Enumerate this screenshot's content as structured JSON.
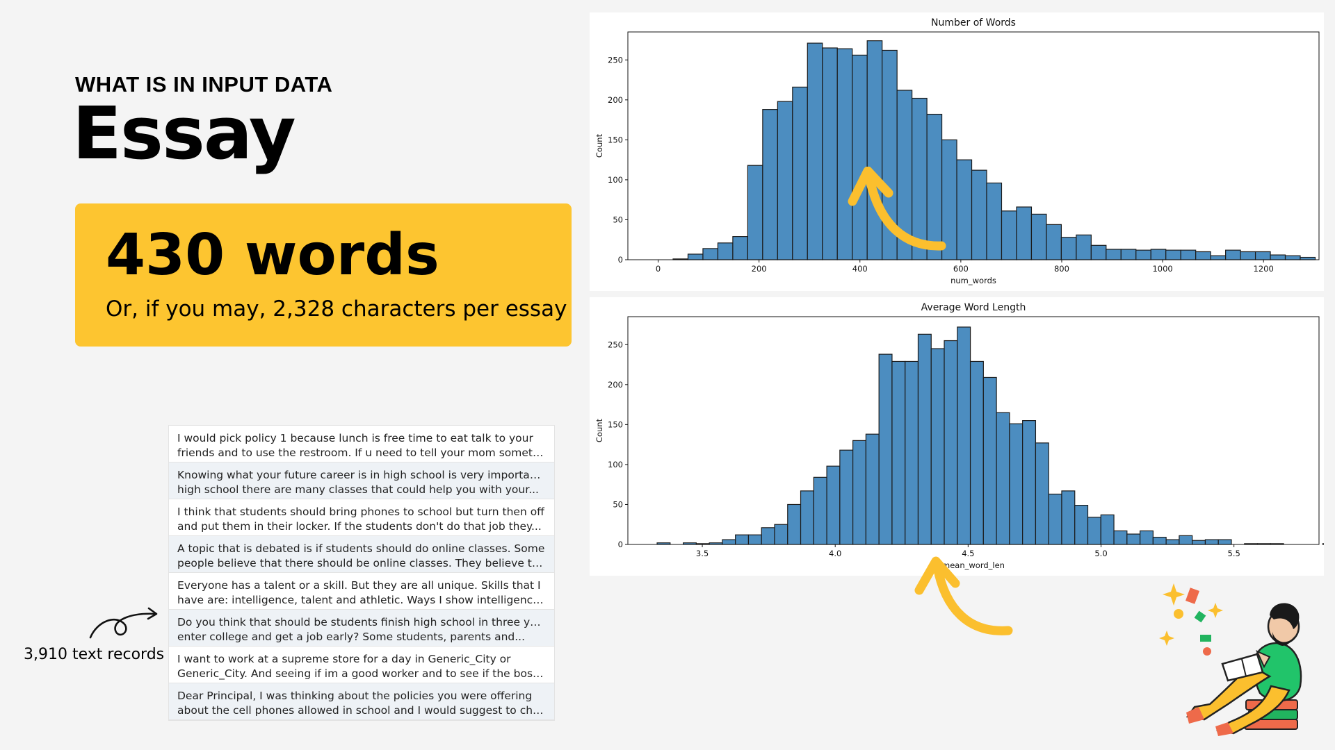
{
  "header": {
    "eyebrow": "WHAT IS IN INPUT DATA",
    "title": "Essay"
  },
  "stat": {
    "value": "430 words",
    "sub": "Or, if you may, 2,328 characters per essay"
  },
  "records": {
    "caption": "3,910 text records",
    "items": [
      {
        "line1": "I would pick policy 1 because lunch is free time to eat talk to your",
        "line2": "friends and to use the restroom. If u need to tell your mom somethin..."
      },
      {
        "line1": "Knowing what your future career is in high school is very important. In",
        "line2": "high school there are many classes that could help you with your..."
      },
      {
        "line1": "I think that students should bring phones to school but turn then off",
        "line2": "and put them in their locker. If the students don't do that job they..."
      },
      {
        "line1": "A topic that is debated is if students should do online classes. Some",
        "line2": "people believe that there should be online classes. They believe that..."
      },
      {
        "line1": "Everyone has a talent or a skill. But they are all unique. Skills that I",
        "line2": "have are: intelligence, talent and athletic. Ways I show intelligence ar..."
      },
      {
        "line1": "Do you think that should be students finish high school in three years,",
        "line2": "enter college and get a job early? Some students, parents and..."
      },
      {
        "line1": "I want to work at a supreme store for a day in Generic_City or",
        "line2": "Generic_City. And seeing if im a good worker and to see if the boss ..."
      },
      {
        "line1": "Dear Principal, I was thinking about the policies you were offering",
        "line2": "about the cell phones allowed in school and I would suggest to choo..."
      }
    ]
  },
  "colors": {
    "bar_fill": "#4c8dc0",
    "bar_edge": "#1b1b1b",
    "accent_yellow": "#fdc530",
    "arrow_yellow": "#fbbf2e"
  },
  "chart_data": [
    {
      "type": "bar",
      "title": "Number of Words",
      "xlabel": "num_words",
      "ylabel": "Count",
      "xlim": [
        -60,
        1310
      ],
      "ylim": [
        0,
        285
      ],
      "xticks": [
        0,
        200,
        400,
        600,
        800,
        1000,
        1200
      ],
      "yticks": [
        0,
        50,
        100,
        150,
        200,
        250
      ],
      "bin_start": 0,
      "bin_width": 29.6,
      "values": [
        0,
        1,
        7,
        14,
        21,
        29,
        118,
        188,
        198,
        216,
        271,
        265,
        264,
        256,
        274,
        262,
        212,
        202,
        182,
        150,
        125,
        112,
        96,
        61,
        66,
        57,
        44,
        28,
        31,
        18,
        13,
        13,
        12,
        13,
        12,
        12,
        10,
        5,
        12,
        10,
        10,
        6,
        5,
        3
      ]
    },
    {
      "type": "bar",
      "title": "Average Word Length",
      "xlabel": "mean_word_len",
      "ylabel": "Count",
      "xlim": [
        3.22,
        5.82
      ],
      "ylim": [
        0,
        285
      ],
      "xticks": [
        3.5,
        4.0,
        4.5,
        5.0,
        5.5
      ],
      "yticks": [
        0,
        50,
        100,
        150,
        200,
        250
      ],
      "bin_start": 3.33,
      "bin_width": 0.0491,
      "values": [
        2,
        0,
        2,
        1,
        2,
        6,
        12,
        12,
        21,
        25,
        50,
        67,
        84,
        98,
        118,
        130,
        138,
        238,
        229,
        229,
        263,
        245,
        255,
        272,
        229,
        209,
        165,
        151,
        155,
        127,
        63,
        67,
        49,
        34,
        37,
        17,
        13,
        17,
        9,
        6,
        11,
        5,
        6,
        6,
        0,
        1,
        1,
        1,
        0,
        0,
        0,
        1
      ]
    }
  ]
}
